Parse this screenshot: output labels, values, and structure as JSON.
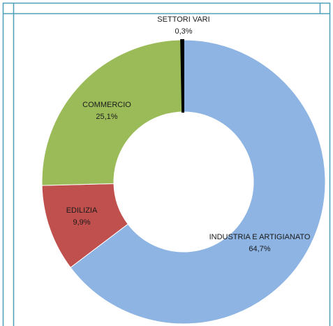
{
  "chart_data": {
    "type": "donut",
    "categories": [
      "INDUSTRIA E ARTIGIANATO",
      "EDILIZIA",
      "COMMERCIO",
      "SETTORI VARI"
    ],
    "values": [
      64.7,
      9.9,
      25.1,
      0.3
    ],
    "value_labels": [
      "64,7%",
      "9,9%",
      "25,1%",
      "0,3%"
    ],
    "colors": [
      "#8db4e2",
      "#c0504d",
      "#9bbb59",
      "#000000"
    ]
  }
}
